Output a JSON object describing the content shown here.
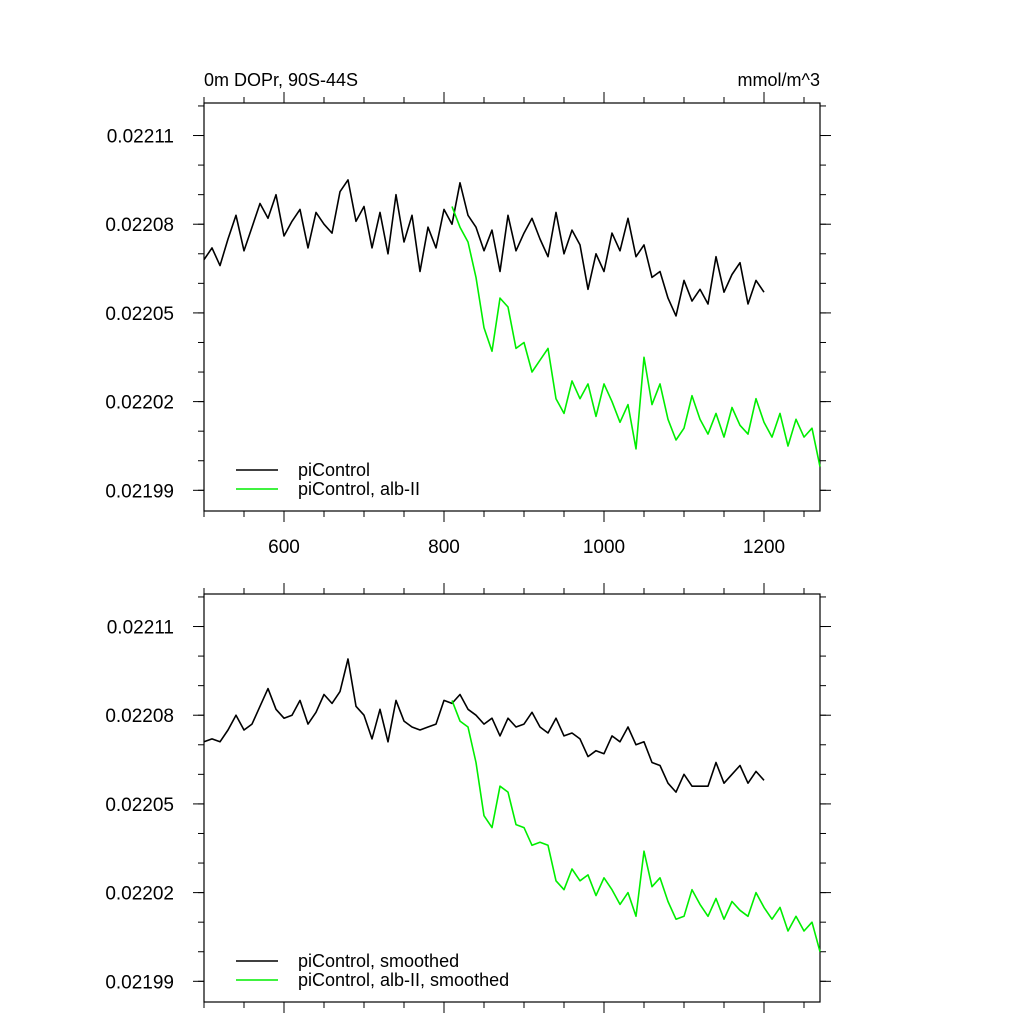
{
  "chart_data": [
    {
      "type": "line",
      "title": "0m DOPr, 90S-44S",
      "units": "mmol/m^3",
      "xlim": [
        500,
        1270
      ],
      "ylim": [
        0.021983,
        0.022121
      ],
      "x_ticks": [
        600,
        800,
        1000,
        1200
      ],
      "x_tick_labels": [
        "600",
        "800",
        "1000",
        "1200"
      ],
      "y_ticks": [
        0.02211,
        0.02208,
        0.02205,
        0.02202,
        0.02199
      ],
      "y_tick_labels": [
        "0.02211",
        "0.02208",
        "0.02205",
        "0.02202",
        "0.02199"
      ],
      "legend": "bottom-left",
      "series": [
        {
          "name": "piControl",
          "color": "#000000",
          "x": [
            500,
            510,
            520,
            530,
            540,
            550,
            560,
            570,
            580,
            590,
            600,
            610,
            620,
            630,
            640,
            650,
            660,
            670,
            680,
            690,
            700,
            710,
            720,
            730,
            740,
            750,
            760,
            770,
            780,
            790,
            800,
            810,
            820,
            830,
            840,
            850,
            860,
            870,
            880,
            890,
            900,
            910,
            920,
            930,
            940,
            950,
            960,
            970,
            980,
            990,
            1000,
            1010,
            1020,
            1030,
            1040,
            1050,
            1060,
            1070,
            1080,
            1090,
            1100,
            1110,
            1120,
            1130,
            1140,
            1150,
            1160,
            1170,
            1180,
            1190,
            1200
          ],
          "y": [
            0.022068,
            0.022072,
            0.022066,
            0.022075,
            0.022083,
            0.022071,
            0.022079,
            0.022087,
            0.022082,
            0.02209,
            0.022076,
            0.022081,
            0.022085,
            0.022072,
            0.022084,
            0.02208,
            0.022077,
            0.022091,
            0.022095,
            0.022081,
            0.022086,
            0.022072,
            0.022084,
            0.02207,
            0.02209,
            0.022074,
            0.022083,
            0.022064,
            0.022079,
            0.022072,
            0.022085,
            0.02208,
            0.022094,
            0.022083,
            0.022079,
            0.022071,
            0.022078,
            0.022064,
            0.022083,
            0.022071,
            0.022077,
            0.022082,
            0.022075,
            0.022069,
            0.022084,
            0.02207,
            0.022078,
            0.022073,
            0.022058,
            0.02207,
            0.022064,
            0.022077,
            0.022071,
            0.022082,
            0.022069,
            0.022073,
            0.022062,
            0.022064,
            0.022055,
            0.022049,
            0.022061,
            0.022054,
            0.022058,
            0.022053,
            0.022069,
            0.022057,
            0.022063,
            0.022067,
            0.022053,
            0.022061,
            0.022057
          ]
        },
        {
          "name": "piControl, alb-II",
          "color": "#00ee00",
          "x": [
            810,
            820,
            830,
            840,
            850,
            860,
            870,
            880,
            890,
            900,
            910,
            920,
            930,
            940,
            950,
            960,
            970,
            980,
            990,
            1000,
            1010,
            1020,
            1030,
            1040,
            1050,
            1060,
            1070,
            1080,
            1090,
            1100,
            1110,
            1120,
            1130,
            1140,
            1150,
            1160,
            1170,
            1180,
            1190,
            1200,
            1210,
            1220,
            1230,
            1240,
            1250,
            1260,
            1270
          ],
          "y": [
            0.022086,
            0.022079,
            0.022074,
            0.022062,
            0.022045,
            0.022037,
            0.022055,
            0.022052,
            0.022038,
            0.02204,
            0.02203,
            0.022034,
            0.022038,
            0.022021,
            0.022016,
            0.022027,
            0.022021,
            0.022026,
            0.022015,
            0.022026,
            0.02202,
            0.022013,
            0.022019,
            0.022004,
            0.022035,
            0.022019,
            0.022026,
            0.022014,
            0.022007,
            0.022011,
            0.022022,
            0.022014,
            0.022009,
            0.022016,
            0.022008,
            0.022018,
            0.022012,
            0.022009,
            0.022021,
            0.022013,
            0.022008,
            0.022016,
            0.022005,
            0.022014,
            0.022008,
            0.022011,
            0.021998
          ]
        }
      ]
    },
    {
      "type": "line",
      "title": "",
      "xlim": [
        500,
        1270
      ],
      "ylim": [
        0.021983,
        0.022121
      ],
      "x_ticks": [
        600,
        800,
        1000,
        1200
      ],
      "x_tick_labels": [
        "",
        "",
        "",
        ""
      ],
      "y_ticks": [
        0.02211,
        0.02208,
        0.02205,
        0.02202,
        0.02199
      ],
      "y_tick_labels": [
        "0.02211",
        "0.02208",
        "0.02205",
        "0.02202",
        "0.02199"
      ],
      "legend": "bottom-left",
      "series": [
        {
          "name": "piControl, smoothed",
          "color": "#000000",
          "x": [
            500,
            510,
            520,
            530,
            540,
            550,
            560,
            570,
            580,
            590,
            600,
            610,
            620,
            630,
            640,
            650,
            660,
            670,
            680,
            690,
            700,
            710,
            720,
            730,
            740,
            750,
            760,
            770,
            780,
            790,
            800,
            810,
            820,
            830,
            840,
            850,
            860,
            870,
            880,
            890,
            900,
            910,
            920,
            930,
            940,
            950,
            960,
            970,
            980,
            990,
            1000,
            1010,
            1020,
            1030,
            1040,
            1050,
            1060,
            1070,
            1080,
            1090,
            1100,
            1110,
            1120,
            1130,
            1140,
            1150,
            1160,
            1170,
            1180,
            1190,
            1200
          ],
          "y": [
            0.022071,
            0.022072,
            0.022071,
            0.022075,
            0.02208,
            0.022075,
            0.022077,
            0.022083,
            0.022089,
            0.022082,
            0.022079,
            0.02208,
            0.022085,
            0.022077,
            0.022081,
            0.022087,
            0.022084,
            0.022088,
            0.022099,
            0.022083,
            0.02208,
            0.022072,
            0.022082,
            0.022071,
            0.022085,
            0.022078,
            0.022076,
            0.022075,
            0.022076,
            0.022077,
            0.022085,
            0.022084,
            0.022087,
            0.022082,
            0.02208,
            0.022077,
            0.022079,
            0.022073,
            0.022079,
            0.022076,
            0.022077,
            0.022081,
            0.022076,
            0.022074,
            0.022079,
            0.022073,
            0.022074,
            0.022072,
            0.022066,
            0.022068,
            0.022067,
            0.022073,
            0.022071,
            0.022076,
            0.02207,
            0.022071,
            0.022064,
            0.022063,
            0.022057,
            0.022054,
            0.02206,
            0.022056,
            0.022056,
            0.022056,
            0.022064,
            0.022057,
            0.02206,
            0.022063,
            0.022057,
            0.022061,
            0.022058
          ]
        },
        {
          "name": "piControl, alb-II, smoothed",
          "color": "#00ee00",
          "x": [
            810,
            820,
            830,
            840,
            850,
            860,
            870,
            880,
            890,
            900,
            910,
            920,
            930,
            940,
            950,
            960,
            970,
            980,
            990,
            1000,
            1010,
            1020,
            1030,
            1040,
            1050,
            1060,
            1070,
            1080,
            1090,
            1100,
            1110,
            1120,
            1130,
            1140,
            1150,
            1160,
            1170,
            1180,
            1190,
            1200,
            1210,
            1220,
            1230,
            1240,
            1250,
            1260,
            1270
          ],
          "y": [
            0.022085,
            0.022078,
            0.022076,
            0.022064,
            0.022046,
            0.022042,
            0.022056,
            0.022054,
            0.022043,
            0.022042,
            0.022036,
            0.022037,
            0.022036,
            0.022024,
            0.022021,
            0.022028,
            0.022024,
            0.022026,
            0.022019,
            0.022025,
            0.022021,
            0.022016,
            0.02202,
            0.022012,
            0.022034,
            0.022022,
            0.022025,
            0.022017,
            0.022011,
            0.022012,
            0.022021,
            0.022016,
            0.022012,
            0.022018,
            0.022011,
            0.022017,
            0.022014,
            0.022012,
            0.02202,
            0.022015,
            0.022011,
            0.022015,
            0.022007,
            0.022012,
            0.022007,
            0.02201,
            0.022
          ]
        }
      ]
    }
  ]
}
